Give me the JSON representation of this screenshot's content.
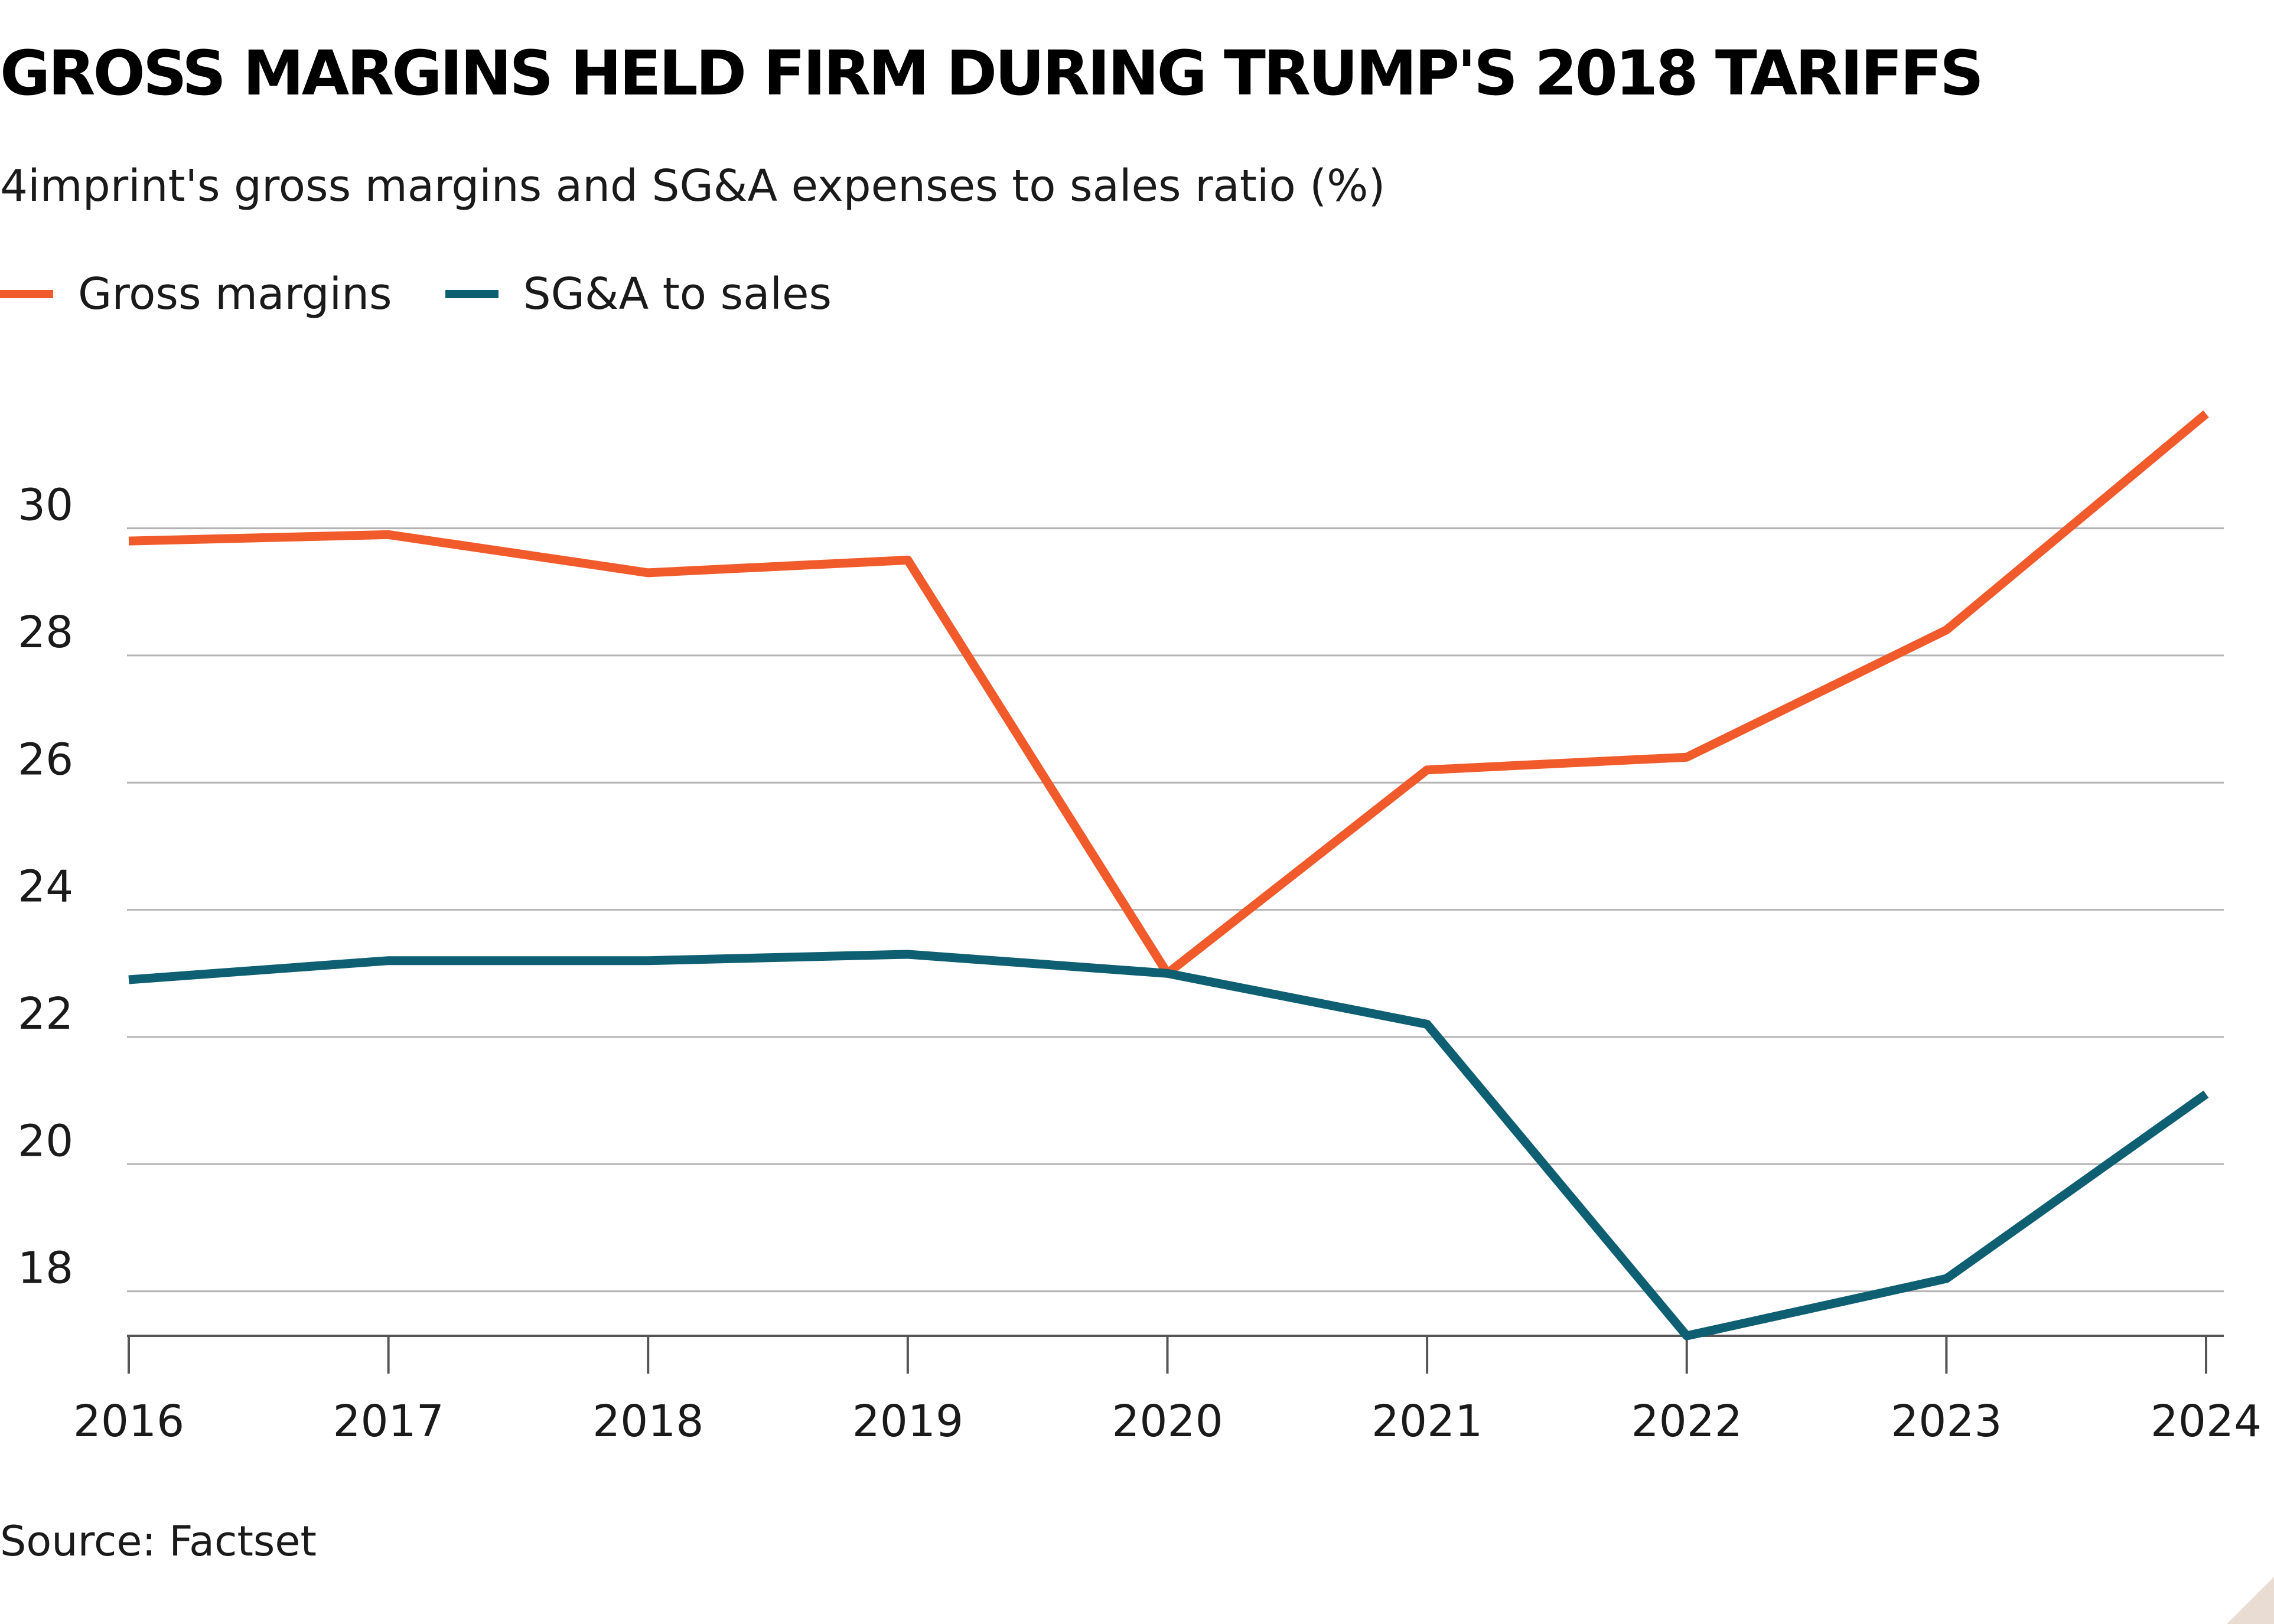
{
  "header": {
    "title": "GROSS MARGINS HELD FIRM DURING TRUMP'S 2018 TARIFFS",
    "subtitle": "4imprint's gross margins and SG&A expenses to sales ratio (%)"
  },
  "legend": {
    "items": [
      {
        "label": "Gross margins",
        "color": "#f15a2b"
      },
      {
        "label": "SG&A to sales",
        "color": "#0f5f73"
      }
    ]
  },
  "footer": {
    "source": "Source: Factset"
  },
  "colors": {
    "grid": "#b3b3b3",
    "axis": "#555555",
    "gross_margins": "#f15a2b",
    "sga": "#0f5f73"
  },
  "chart_data": {
    "type": "line",
    "title": "GROSS MARGINS HELD FIRM DURING TRUMP'S 2018 TARIFFS",
    "subtitle": "4imprint's gross margins and SG&A expenses to sales ratio (%)",
    "xlabel": "",
    "ylabel": "",
    "x": [
      "2016",
      "2017",
      "2018",
      "2019",
      "2020",
      "2021",
      "2022",
      "2023",
      "2024"
    ],
    "yticks": [
      "18",
      "20",
      "22",
      "24",
      "26",
      "28",
      "30"
    ],
    "ylim": [
      17.3,
      31.9
    ],
    "grid": true,
    "legend_position": "top-left",
    "series": [
      {
        "name": "Gross margins",
        "color": "#f15a2b",
        "values": [
          29.8,
          29.9,
          29.3,
          29.5,
          23.0,
          26.2,
          26.4,
          28.4,
          31.8
        ]
      },
      {
        "name": "SG&A to sales",
        "color": "#0f5f73",
        "values": [
          22.9,
          23.2,
          23.2,
          23.3,
          23.0,
          22.2,
          17.3,
          18.2,
          21.1
        ]
      }
    ],
    "source": "Source: Factset"
  }
}
